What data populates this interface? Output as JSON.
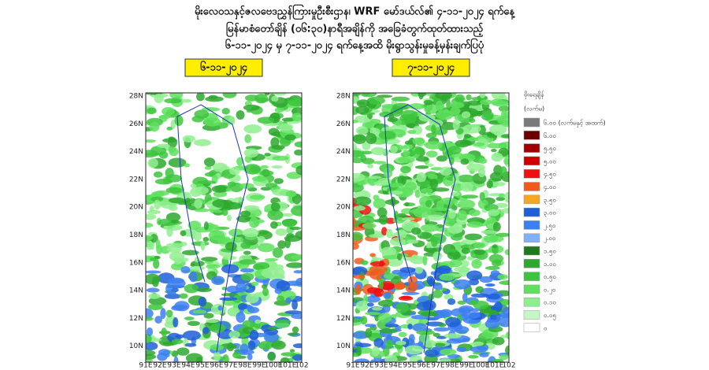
{
  "header": {
    "lines": [
      "မိုးလေဝသနှင့်ဇလဗေဒညွှန်ကြားမှုဦးစီးဌာန၊ WRF မော်ဒယ်လ်၏ ၄-၁၁-၂၀၂၄ ရက်နေ့",
      "မြန်မာစံတော်ချိန် (၀၆:၃၀)နာရီအချိန်ကို အခြေခံတွက်ထုတ်ထားသည့်",
      "၆-၁၁-၂၀၂၄ မှ ၇-၁၁-၂၀၂၄ ရက်နေ့အထိ မိုးရွာသွန်းမှုခန့်မှန်းချက်ပြပုံ"
    ]
  },
  "maps": [
    {
      "date": "၆-၁၁-၂၀၂၄"
    },
    {
      "date": "၇-၁၁-၂၀၂၄"
    }
  ],
  "lat_labels": [
    "28N",
    "26N",
    "24N",
    "22N",
    "20N",
    "18N",
    "16N",
    "14N",
    "12N",
    "10N"
  ],
  "lon_labels": [
    "91E",
    "92E",
    "93E",
    "94E",
    "95E",
    "96E",
    "97E",
    "98E",
    "99E",
    "100E",
    "101E",
    "102"
  ],
  "legend": {
    "title": "မိုးရေချိန်",
    "unit": "(လက်မ)",
    "items": [
      {
        "label": "၆.၀၀ (လက်မနှင့် အထက်)",
        "color": "#7a7a7a"
      },
      {
        "label": "၆.၀၀",
        "color": "#6b0000"
      },
      {
        "label": "၅.၅၀",
        "color": "#a00000"
      },
      {
        "label": "၅.၀၀",
        "color": "#cc0000"
      },
      {
        "label": "၄.၅၀",
        "color": "#ee1111"
      },
      {
        "label": "၄.၀၀",
        "color": "#f05a1e"
      },
      {
        "label": "၃.၅၀",
        "color": "#f5a623"
      },
      {
        "label": "၃.၀၀",
        "color": "#1f5fd6"
      },
      {
        "label": "၂.၅၀",
        "color": "#3c7ff0"
      },
      {
        "label": "၂.၀၀",
        "color": "#7fb2f5"
      },
      {
        "label": "၁.၅၀",
        "color": "#1f7a1f"
      },
      {
        "label": "၁.၀၀",
        "color": "#2ea82e"
      },
      {
        "label": "၀.၅၀",
        "color": "#3dc43d"
      },
      {
        "label": "၀.၂၀",
        "color": "#5ee05e"
      },
      {
        "label": "၀.၁၀",
        "color": "#90ee90"
      },
      {
        "label": "၀.၀၅",
        "color": "#c6f5c6"
      },
      {
        "label": "၀",
        "color": "#ffffff"
      }
    ]
  }
}
